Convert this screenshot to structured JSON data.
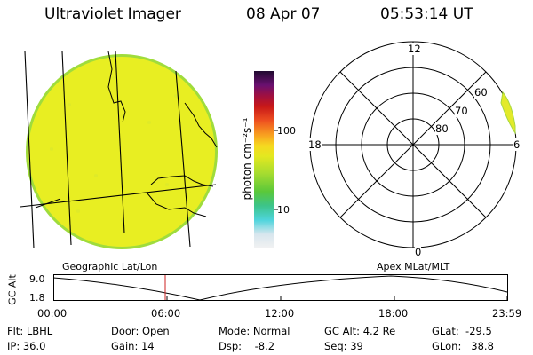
{
  "header": {
    "instrument": "Ultraviolet Imager",
    "date": "08 Apr 07",
    "time": "05:53:14 UT"
  },
  "geo_panel": {
    "label": "Geographic Lat/Lon"
  },
  "polar_panel": {
    "label": "Apex MLat/MLT",
    "mlt_labels": {
      "top": "12",
      "left": "18",
      "right": "6",
      "bottom": "0"
    },
    "lat_labels": [
      "80",
      "70",
      "60"
    ]
  },
  "colorbar": {
    "unit_label": "photon cm⁻²s⁻¹",
    "ticks": [
      "100",
      "10"
    ]
  },
  "altitude_panel": {
    "axis_label": "GC Alt",
    "y_ticks": [
      "9.0",
      "1.8"
    ],
    "x_ticks": [
      "00:00",
      "06:00",
      "12:00",
      "18:00",
      "23:59"
    ]
  },
  "info": {
    "flt": "Flt: LBHL",
    "ip": "IP: 36.0",
    "door": "Door: Open",
    "gain": "Gain: 14",
    "mode": "Mode: Normal",
    "dsp": "Dsp:    -8.2",
    "gc_alt": "GC Alt: 4.2 Re",
    "seq": "Seq: 39",
    "glat": "GLat:  -29.5",
    "glon": "GLon:   38.8"
  },
  "colors": {
    "image_fill": "#e8ee22",
    "image_rim": "#9fdc3c",
    "auroral_oval": "#e3ea2a",
    "time_marker": "#cc2222"
  }
}
